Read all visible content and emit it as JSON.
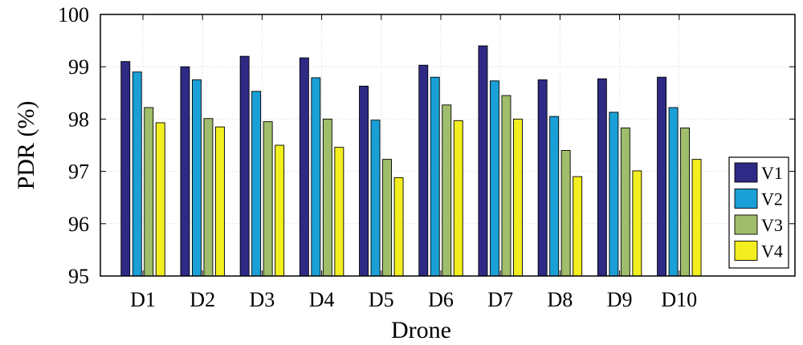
{
  "chart_data": {
    "type": "bar",
    "xlabel": "Drone",
    "ylabel": "PDR (%)",
    "ylim": [
      95,
      100
    ],
    "yticks": [
      95,
      96,
      97,
      98,
      99,
      100
    ],
    "categories": [
      "D1",
      "D2",
      "D3",
      "D4",
      "D5",
      "D6",
      "D7",
      "D8",
      "D9",
      "D10"
    ],
    "series": [
      {
        "name": "V1",
        "color": "#2e2a85",
        "values": [
          99.1,
          99.0,
          99.2,
          99.17,
          98.63,
          99.03,
          99.4,
          98.75,
          98.77,
          98.8
        ]
      },
      {
        "name": "V2",
        "color": "#1aa0d6",
        "values": [
          98.9,
          98.75,
          98.53,
          98.79,
          97.98,
          98.8,
          98.73,
          98.05,
          98.13,
          98.22
        ]
      },
      {
        "name": "V3",
        "color": "#9fbd6a",
        "values": [
          98.22,
          98.01,
          97.95,
          98.0,
          97.23,
          98.27,
          98.45,
          97.4,
          97.83,
          97.83
        ]
      },
      {
        "name": "V4",
        "color": "#f2ee1f",
        "values": [
          97.93,
          97.85,
          97.5,
          97.46,
          96.88,
          97.97,
          98.0,
          96.9,
          97.01,
          97.23
        ]
      }
    ],
    "legend_position": "bottom-right",
    "grid": true
  }
}
